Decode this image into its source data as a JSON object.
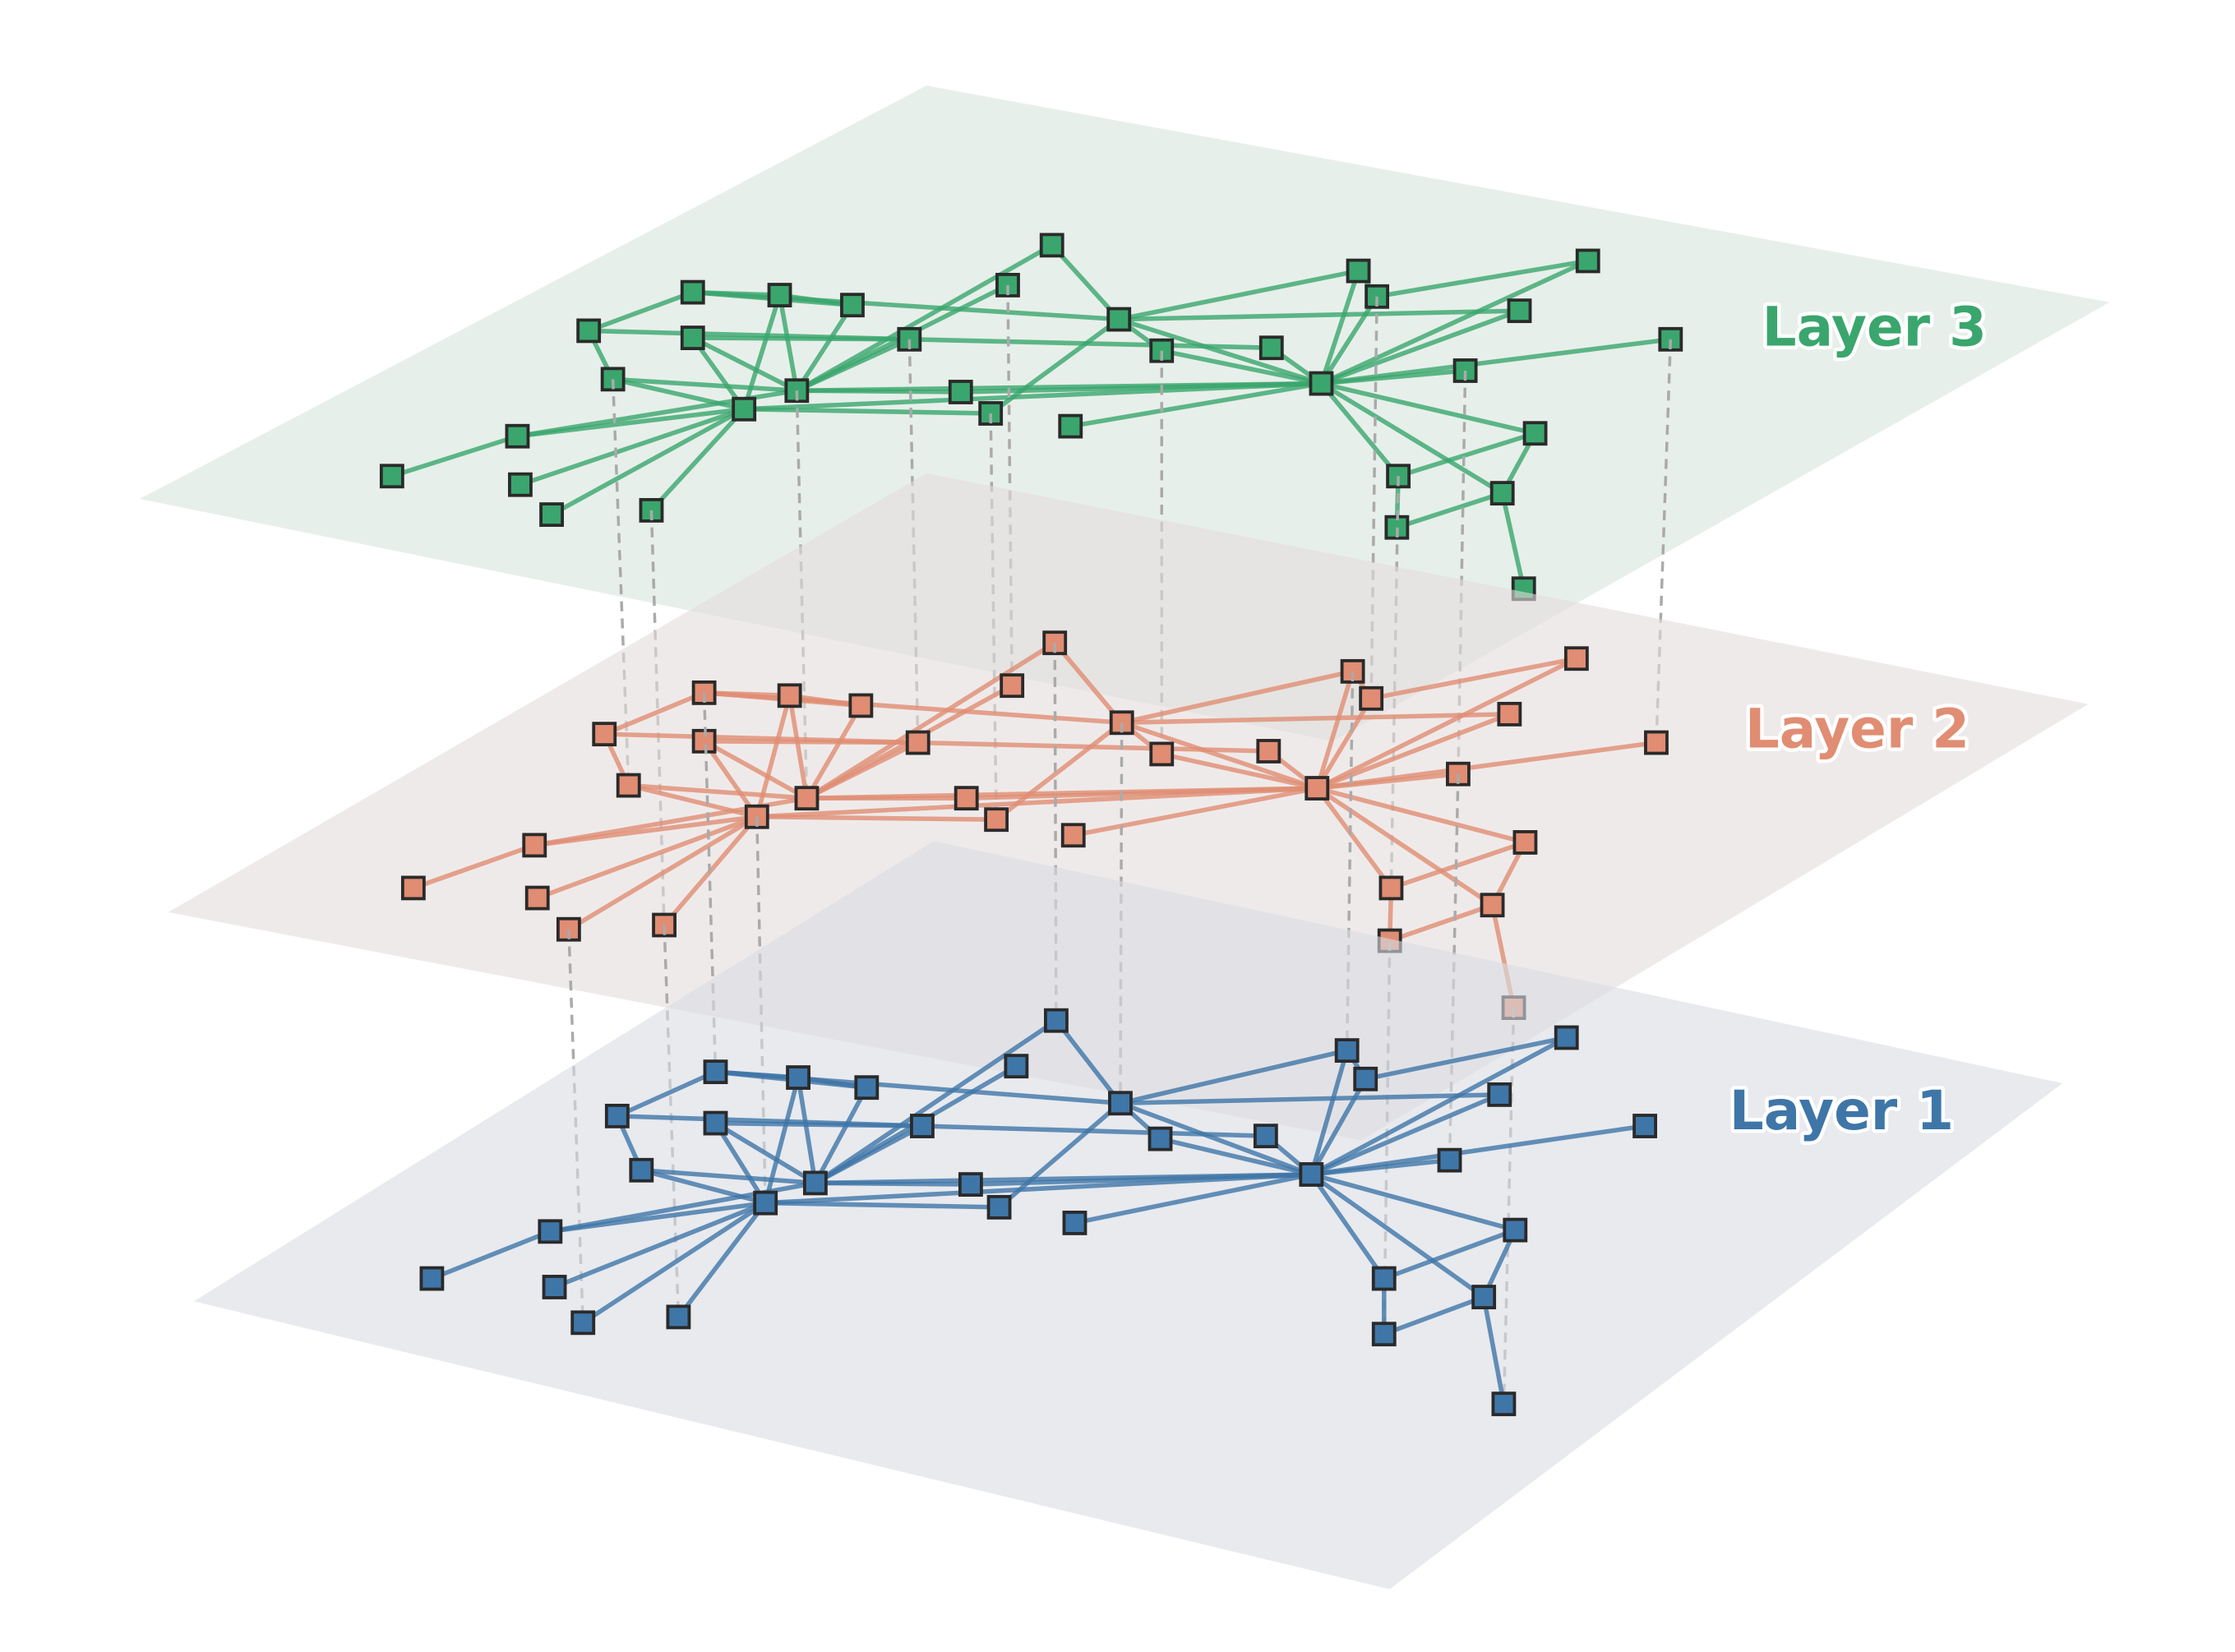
{
  "layers": [
    {
      "label": "Layer 1"
    },
    {
      "label": "Layer 2"
    },
    {
      "label": "Layer 3"
    }
  ]
}
